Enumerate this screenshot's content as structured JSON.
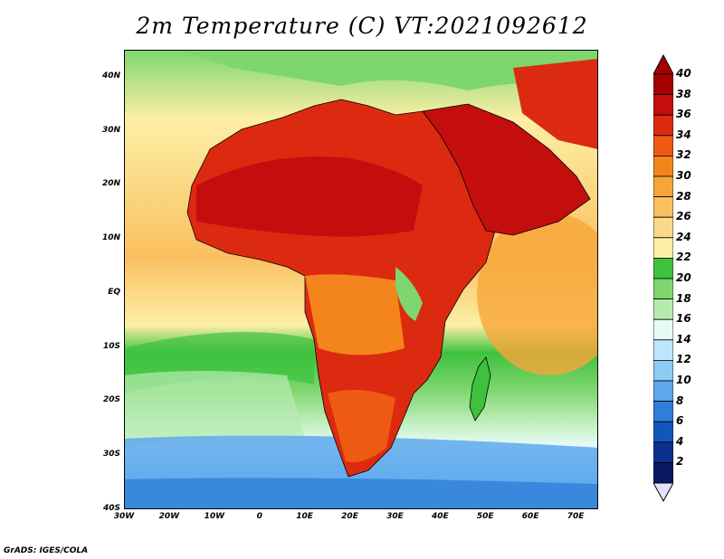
{
  "title": "2m Temperature (C) VT:2021092612",
  "credit": "GrADS: IGES/COLA",
  "map": {
    "lon_range": [
      -30,
      75
    ],
    "lat_range": [
      -40,
      45
    ],
    "lat_ticks": [
      {
        "label": "40N",
        "lat": 40
      },
      {
        "label": "30N",
        "lat": 30
      },
      {
        "label": "20N",
        "lat": 20
      },
      {
        "label": "10N",
        "lat": 10
      },
      {
        "label": "EQ",
        "lat": 0
      },
      {
        "label": "10S",
        "lat": -10
      },
      {
        "label": "20S",
        "lat": -20
      },
      {
        "label": "30S",
        "lat": -30
      },
      {
        "label": "40S",
        "lat": -40
      }
    ],
    "lon_ticks": [
      {
        "label": "30W",
        "lon": -30
      },
      {
        "label": "20W",
        "lon": -20
      },
      {
        "label": "10W",
        "lon": -10
      },
      {
        "label": "0",
        "lon": 0
      },
      {
        "label": "10E",
        "lon": 10
      },
      {
        "label": "20E",
        "lon": 20
      },
      {
        "label": "30E",
        "lon": 30
      },
      {
        "label": "40E",
        "lon": 40
      },
      {
        "label": "50E",
        "lon": 50
      },
      {
        "label": "60E",
        "lon": 60
      },
      {
        "label": "70E",
        "lon": 70
      }
    ]
  },
  "colorbar": {
    "levels": [
      {
        "label": "40",
        "color": "#a50000"
      },
      {
        "label": "38",
        "color": "#c40e0e"
      },
      {
        "label": "36",
        "color": "#dc2a10"
      },
      {
        "label": "34",
        "color": "#ee5a14"
      },
      {
        "label": "32",
        "color": "#f4851c"
      },
      {
        "label": "30",
        "color": "#f7a53a"
      },
      {
        "label": "28",
        "color": "#fac060"
      },
      {
        "label": "26",
        "color": "#fbd98a"
      },
      {
        "label": "24",
        "color": "#fcefa6"
      },
      {
        "label": "22",
        "color": "#3ec23e"
      },
      {
        "label": "20",
        "color": "#7ed66e"
      },
      {
        "label": "18",
        "color": "#b6ebb0"
      },
      {
        "label": "16",
        "color": "#e6fbf6"
      },
      {
        "label": "14",
        "color": "#bfe6fb"
      },
      {
        "label": "12",
        "color": "#8ecbf4"
      },
      {
        "label": "10",
        "color": "#5ea8ec"
      },
      {
        "label": "8",
        "color": "#2f7fd8"
      },
      {
        "label": "6",
        "color": "#1256bc"
      },
      {
        "label": "4",
        "color": "#0a2f8f"
      },
      {
        "label": "2",
        "color": "#0a1a62"
      }
    ],
    "over_color": "#a50000",
    "under_color": "#e6e0ff"
  }
}
